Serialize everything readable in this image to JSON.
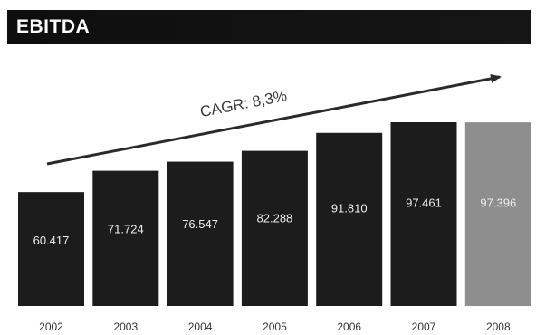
{
  "header": {
    "title": "EBITDA"
  },
  "chart_data": {
    "type": "bar",
    "title": "EBITDA",
    "xlabel": "",
    "ylabel": "",
    "categories": [
      "2002",
      "2003",
      "2004",
      "2005",
      "2006",
      "2007",
      "2008"
    ],
    "values": [
      60417,
      71724,
      76547,
      82288,
      91810,
      97461,
      97396
    ],
    "data_labels": [
      "60.417",
      "71.724",
      "76.547",
      "82.288",
      "91.810",
      "97.461",
      "97.396"
    ],
    "ylim": [
      0,
      97461
    ],
    "grid": false,
    "legend": "none",
    "annotation": {
      "text": "CAGR: 8,3%"
    },
    "colors": {
      "bar": "#1c1c1c",
      "highlight_bar": "#8e8e8e",
      "highlight_category": "2008"
    }
  }
}
